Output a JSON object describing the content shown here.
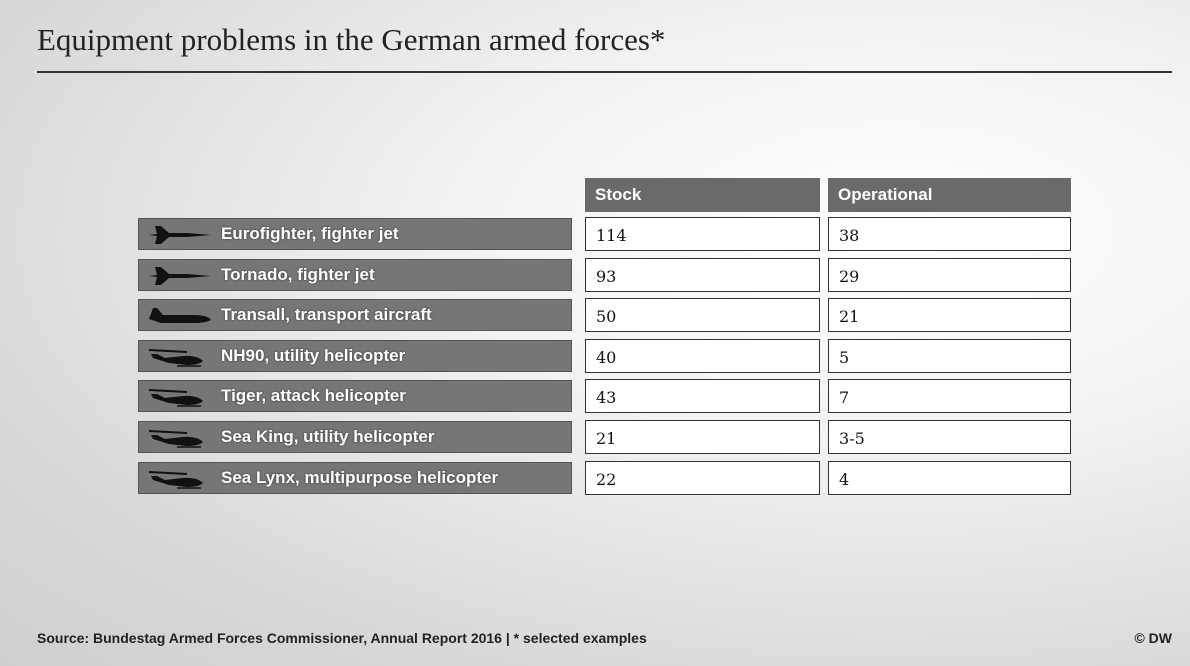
{
  "header": {
    "title": "Equipment problems in the German armed forces*"
  },
  "table": {
    "columns": [
      "Stock",
      "Operational"
    ],
    "rows": [
      [
        "Eurofighter, fighter jet",
        114,
        38
      ],
      [
        "Tornado, fighter jet",
        93,
        29
      ],
      [
        "Transall, transport aircraft",
        50,
        21
      ],
      [
        "NH90, utility helicopter",
        40,
        5
      ],
      [
        "Tiger, attack helicopter",
        43,
        7
      ],
      [
        "Sea King, utility helicopter",
        21,
        "3-5"
      ],
      [
        "Sea Lynx, multipurpose helicopter",
        22,
        4
      ]
    ]
  },
  "footer": {
    "source": "Source: Bundestag Armed Forces Commissioner, Annual Report 2016 | * selected examples",
    "credit": "© DW"
  }
}
